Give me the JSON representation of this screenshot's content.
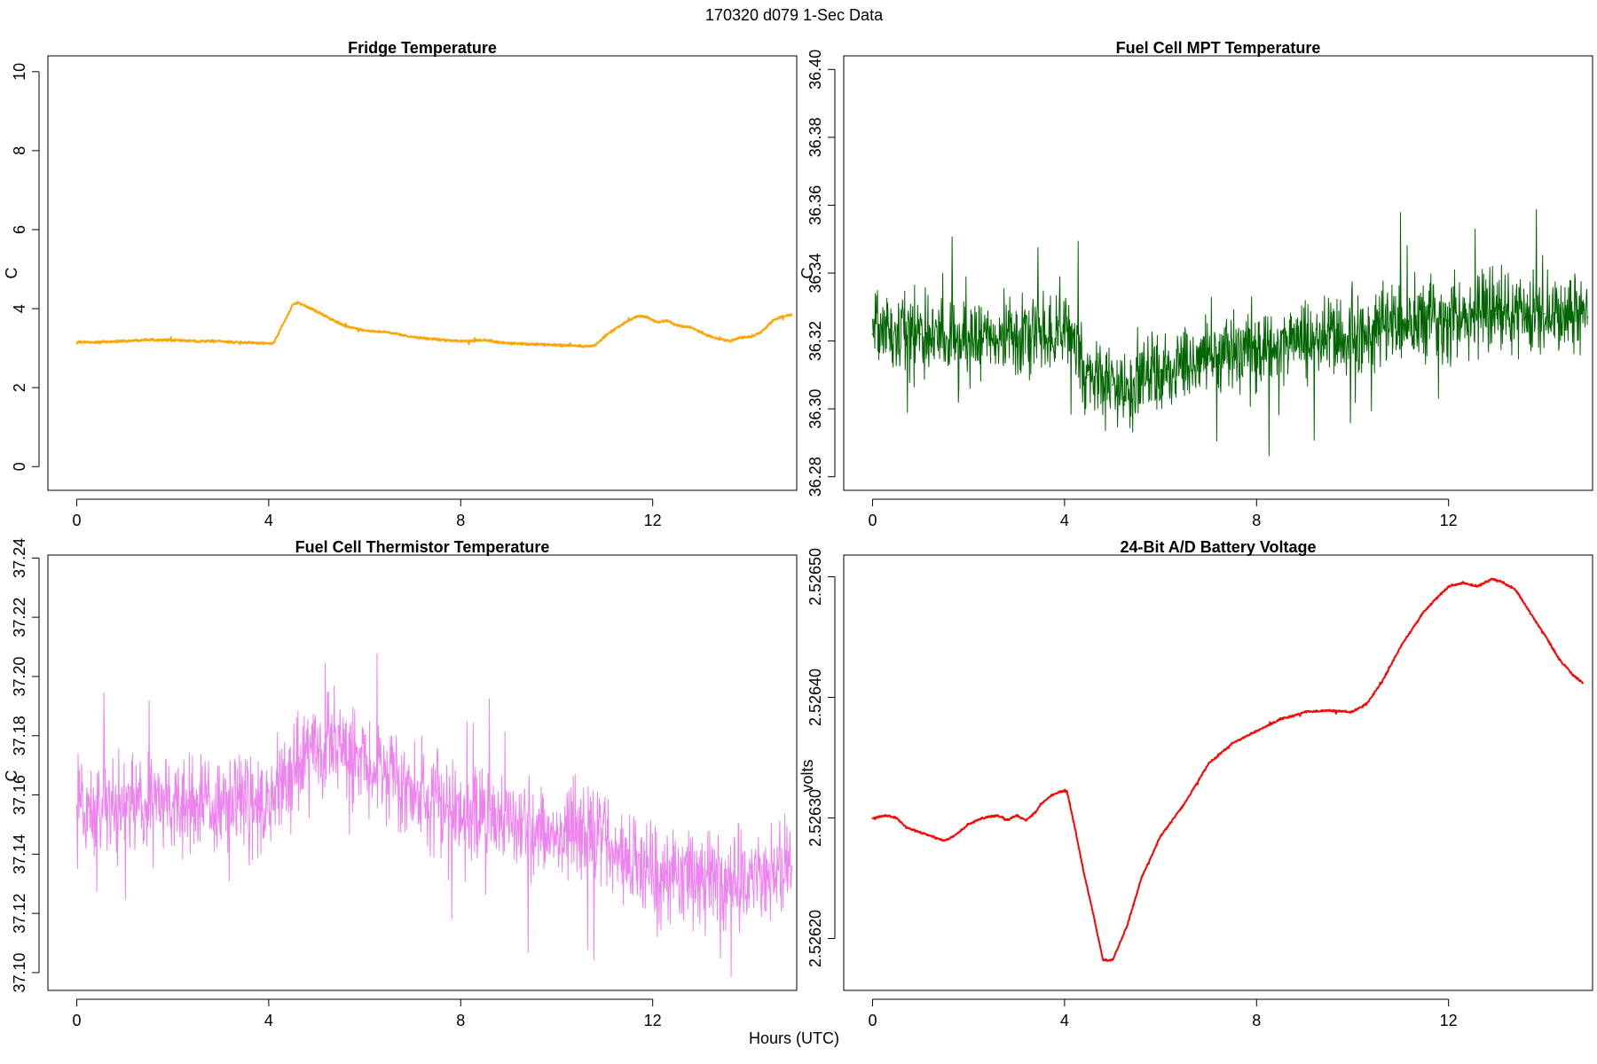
{
  "figure": {
    "title": "170320   d079   1-Sec Data",
    "xlabel": "Hours (UTC)"
  },
  "chart_data": [
    {
      "type": "line",
      "title": "Fridge Temperature",
      "xlabel": "Hours (UTC)",
      "ylabel": "C",
      "color": "#FFA500",
      "xlim": [
        -0.6,
        15.0
      ],
      "ylim": [
        -0.6,
        10.4
      ],
      "xticks": [
        0,
        4,
        8,
        12
      ],
      "yticks": [
        0,
        2,
        4,
        6,
        8,
        10
      ],
      "ytick_labels": [
        "0",
        "2",
        "4",
        "6",
        "8",
        "10"
      ],
      "noise": 0.015,
      "x": [
        0,
        0.5,
        1,
        1.5,
        2,
        2.5,
        3,
        3.5,
        4,
        4.1,
        4.3,
        4.5,
        4.6,
        4.8,
        5.2,
        5.6,
        6,
        6.5,
        7,
        7.5,
        8,
        8.5,
        9,
        9.5,
        10,
        10.5,
        10.8,
        11,
        11.3,
        11.5,
        11.7,
        11.9,
        12.1,
        12.3,
        12.5,
        12.8,
        13,
        13.3,
        13.6,
        13.8,
        14.1,
        14.3,
        14.5,
        14.7,
        14.9
      ],
      "y": [
        3.15,
        3.15,
        3.18,
        3.22,
        3.2,
        3.18,
        3.17,
        3.14,
        3.12,
        3.12,
        3.6,
        4.1,
        4.15,
        4.05,
        3.8,
        3.55,
        3.45,
        3.4,
        3.28,
        3.22,
        3.18,
        3.2,
        3.12,
        3.1,
        3.08,
        3.05,
        3.06,
        3.3,
        3.55,
        3.7,
        3.82,
        3.78,
        3.65,
        3.7,
        3.58,
        3.52,
        3.4,
        3.25,
        3.18,
        3.25,
        3.3,
        3.45,
        3.7,
        3.8,
        3.85
      ]
    },
    {
      "type": "line",
      "title": "Fuel Cell MPT Temperature",
      "xlabel": "Hours (UTC)",
      "ylabel": "C",
      "color": "#006400",
      "xlim": [
        -0.6,
        15.0
      ],
      "ylim": [
        36.276,
        36.404
      ],
      "xticks": [
        0,
        4,
        8,
        12
      ],
      "yticks": [
        36.28,
        36.3,
        36.32,
        36.34,
        36.36,
        36.38,
        36.4
      ],
      "ytick_labels": [
        "36.28",
        "36.30",
        "36.32",
        "36.34",
        "36.36",
        "36.38",
        "36.40"
      ],
      "noise": 0.006,
      "x": [
        0,
        1,
        2,
        3,
        4,
        4.5,
        5,
        6,
        7,
        8,
        9,
        10,
        11,
        12,
        13,
        14,
        14.9
      ],
      "y": [
        36.322,
        36.322,
        36.321,
        36.322,
        36.323,
        36.31,
        36.307,
        36.311,
        36.316,
        36.318,
        36.32,
        36.322,
        36.325,
        36.326,
        36.328,
        36.328,
        36.327
      ]
    },
    {
      "type": "line",
      "title": "Fuel Cell Thermistor Temperature",
      "xlabel": "Hours (UTC)",
      "ylabel": "C",
      "color": "#EE82EE",
      "xlim": [
        -0.6,
        15.0
      ],
      "ylim": [
        37.094,
        37.241
      ],
      "xticks": [
        0,
        4,
        8,
        12
      ],
      "yticks": [
        37.1,
        37.12,
        37.14,
        37.16,
        37.18,
        37.2,
        37.22,
        37.24
      ],
      "ytick_labels": [
        "37.10",
        "37.12",
        "37.14",
        "37.16",
        "37.18",
        "37.20",
        "37.22",
        "37.24"
      ],
      "noise": 0.008,
      "x": [
        0,
        1,
        2,
        3,
        4,
        4.5,
        5,
        5.5,
        6,
        7,
        8,
        9,
        10,
        11,
        11.5,
        12,
        13,
        14,
        14.9
      ],
      "y": [
        37.155,
        37.156,
        37.156,
        37.156,
        37.157,
        37.168,
        37.176,
        37.177,
        37.17,
        37.161,
        37.155,
        37.151,
        37.148,
        37.145,
        37.138,
        37.133,
        37.13,
        37.132,
        37.136
      ]
    },
    {
      "type": "line",
      "title": "24-Bit A/D Battery Voltage",
      "xlabel": "Hours (UTC)",
      "ylabel": "volts",
      "color": "#FF0000",
      "xlim": [
        -0.6,
        15.0
      ],
      "ylim": [
        2.526157,
        2.526518
      ],
      "xticks": [
        0,
        4,
        8,
        12
      ],
      "yticks": [
        2.5262,
        2.5263,
        2.5264,
        2.5265
      ],
      "ytick_labels": [
        "2.52620",
        "2.52630",
        "2.52640",
        "2.52650"
      ],
      "noise": 4e-07,
      "x": [
        0,
        0.3,
        0.5,
        0.7,
        1,
        1.5,
        1.7,
        2,
        2.3,
        2.6,
        2.8,
        3,
        3.2,
        3.4,
        3.5,
        3.7,
        3.9,
        4.05,
        4.2,
        4.4,
        4.6,
        4.8,
        5,
        5.3,
        5.6,
        6,
        6.5,
        7,
        7.5,
        8,
        8.5,
        8.8,
        9,
        9.5,
        10,
        10.3,
        10.6,
        11,
        11.5,
        12,
        12.3,
        12.6,
        12.9,
        13.1,
        13.4,
        13.7,
        14,
        14.3,
        14.6,
        14.8
      ],
      "y": [
        2.5263,
        2.526302,
        2.5263,
        2.526292,
        2.526288,
        2.526281,
        2.526285,
        2.526295,
        2.5263,
        2.526302,
        2.526298,
        2.526302,
        2.526298,
        2.526305,
        2.526311,
        2.526318,
        2.526322,
        2.526322,
        2.526295,
        2.526255,
        2.52622,
        2.526182,
        2.526182,
        2.52621,
        2.52625,
        2.526285,
        2.526312,
        2.526345,
        2.526362,
        2.526372,
        2.526382,
        2.526385,
        2.526388,
        2.526389,
        2.526388,
        2.526395,
        2.526412,
        2.526442,
        2.526472,
        2.526492,
        2.526495,
        2.526492,
        2.526498,
        2.526496,
        2.526489,
        2.52647,
        2.526452,
        2.526432,
        2.526418,
        2.526412
      ]
    }
  ]
}
